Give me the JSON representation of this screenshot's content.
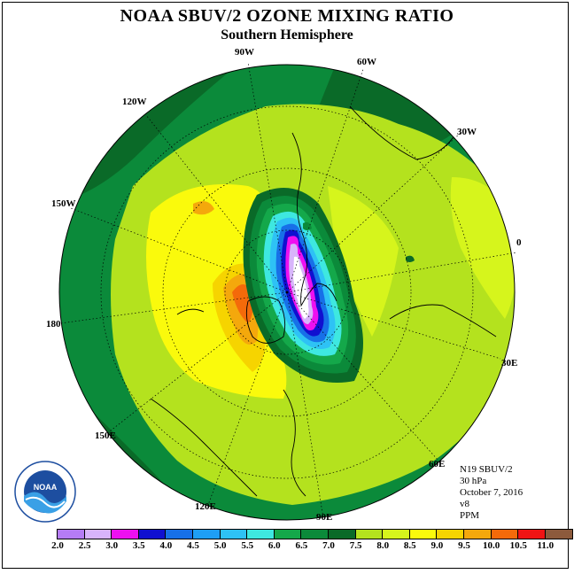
{
  "title": "NOAA SBUV/2 OZONE MIXING RATIO",
  "subtitle": "Southern Hemisphere",
  "longitude_labels": [
    "90W",
    "60W",
    "120W",
    "30W",
    "150W",
    "0",
    "180",
    "30E",
    "150E",
    "60E",
    "120E",
    "90E"
  ],
  "info": {
    "satellite": "N19 SBUV/2",
    "level": "30 hPa",
    "date": "October 7, 2016",
    "version": "v8",
    "units": "PPM"
  },
  "colorbar": {
    "ticks": [
      "2.0",
      "2.5",
      "3.0",
      "3.5",
      "4.0",
      "4.5",
      "5.0",
      "5.5",
      "6.0",
      "6.5",
      "7.0",
      "7.5",
      "8.0",
      "8.5",
      "9.0",
      "9.5",
      "10.0",
      "10.5",
      "11.0"
    ],
    "colors": [
      "#b57cf5",
      "#d8b4fb",
      "#ee10f0",
      "#1010d0",
      "#1770e8",
      "#1e9ef5",
      "#2ec2f5",
      "#3ee8e0",
      "#14a84a",
      "#0b8a3a",
      "#0a6a28",
      "#b4e21e",
      "#d6f51c",
      "#fafa0c",
      "#f6d400",
      "#f4a80c",
      "#f46a0a",
      "#f01414",
      "#8c5a3c"
    ]
  },
  "logo": {
    "text": "NOAA"
  }
}
